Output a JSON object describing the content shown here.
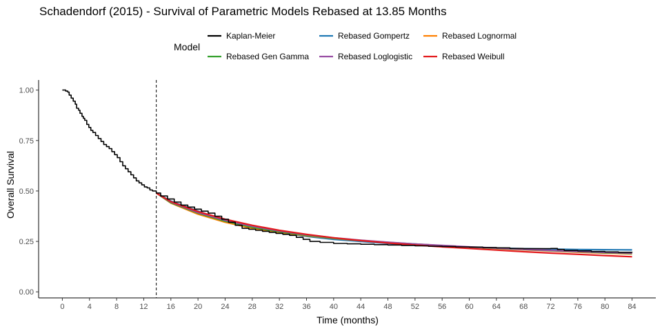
{
  "chart_data": {
    "type": "line",
    "title": "Schadendorf (2015) - Survival of Parametric Models Rebased at 13.85 Months",
    "xlabel": "Time (months)",
    "ylabel": "Overall Survival",
    "xlim": [
      -3.5,
      87.5
    ],
    "ylim": [
      -0.03,
      1.05
    ],
    "x_ticks": [
      0,
      4,
      8,
      12,
      16,
      20,
      24,
      28,
      32,
      36,
      40,
      44,
      48,
      52,
      56,
      60,
      64,
      68,
      72,
      76,
      80,
      84
    ],
    "x_tick_labels": [
      "0",
      "4",
      "8",
      "12",
      "16",
      "20",
      "24",
      "28",
      "32",
      "36",
      "40",
      "44",
      "48",
      "52",
      "56",
      "60",
      "64",
      "68",
      "72",
      "76",
      "80",
      "84"
    ],
    "y_ticks": [
      0,
      0.25,
      0.5,
      0.75,
      1
    ],
    "y_tick_labels": [
      "0.00",
      "0.25",
      "0.50",
      "0.75",
      "1.00"
    ],
    "rebase_time": 13.85,
    "grid": false,
    "legend": {
      "title": "Model",
      "position": "top",
      "columns": 3
    },
    "series": [
      {
        "name": "Kaplan-Meier",
        "color": "#000000",
        "step": true,
        "x": [
          0,
          0.5,
          0.8,
          1,
          1.3,
          1.6,
          1.9,
          2.1,
          2.4,
          2.6,
          2.9,
          3.1,
          3.3,
          3.6,
          3.9,
          4.2,
          4.5,
          4.9,
          5.3,
          5.7,
          6.1,
          6.5,
          6.9,
          7.3,
          7.7,
          8.1,
          8.5,
          8.9,
          9.3,
          9.7,
          10.1,
          10.5,
          10.9,
          11.3,
          11.7,
          12.1,
          12.5,
          12.9,
          13.3,
          13.85,
          14.5,
          15.5,
          16.5,
          17.5,
          18.5,
          19.5,
          20.5,
          21.5,
          22.5,
          23.5,
          24.5,
          25.5,
          26.5,
          27.5,
          28.5,
          29.5,
          30.5,
          31.5,
          32.5,
          33.5,
          34.5,
          35.5,
          36.5,
          38,
          40,
          42,
          44,
          46,
          48,
          50,
          52,
          54,
          56,
          58,
          60,
          62,
          64,
          66,
          68,
          70,
          72,
          73,
          74,
          76,
          78,
          80,
          82,
          84
        ],
        "y": [
          1,
          0.995,
          0.99,
          0.975,
          0.96,
          0.945,
          0.93,
          0.91,
          0.9,
          0.885,
          0.87,
          0.86,
          0.85,
          0.83,
          0.815,
          0.8,
          0.79,
          0.775,
          0.76,
          0.745,
          0.73,
          0.72,
          0.71,
          0.695,
          0.68,
          0.665,
          0.645,
          0.625,
          0.61,
          0.595,
          0.58,
          0.565,
          0.55,
          0.54,
          0.53,
          0.52,
          0.515,
          0.505,
          0.5,
          0.49,
          0.475,
          0.46,
          0.445,
          0.43,
          0.42,
          0.41,
          0.4,
          0.39,
          0.375,
          0.36,
          0.345,
          0.33,
          0.315,
          0.31,
          0.305,
          0.3,
          0.295,
          0.29,
          0.285,
          0.28,
          0.27,
          0.26,
          0.25,
          0.245,
          0.24,
          0.238,
          0.236,
          0.234,
          0.232,
          0.23,
          0.228,
          0.226,
          0.225,
          0.223,
          0.222,
          0.22,
          0.218,
          0.215,
          0.214,
          0.214,
          0.215,
          0.21,
          0.205,
          0.203,
          0.2,
          0.198,
          0.196,
          0.195
        ]
      },
      {
        "name": "Rebased Gompertz",
        "color": "#1f78b4",
        "x": [
          13.85,
          16,
          20,
          24,
          28,
          32,
          36,
          40,
          44,
          48,
          52,
          56,
          60,
          64,
          68,
          72,
          76,
          80,
          84
        ],
        "y": [
          0.49,
          0.45,
          0.4,
          0.355,
          0.32,
          0.295,
          0.275,
          0.26,
          0.25,
          0.24,
          0.232,
          0.226,
          0.221,
          0.217,
          0.214,
          0.212,
          0.21,
          0.209,
          0.208
        ]
      },
      {
        "name": "Rebased Lognormal",
        "color": "#ff7f00",
        "x": [
          13.85,
          16,
          20,
          24,
          28,
          32,
          36,
          40,
          44,
          48,
          52,
          56,
          60,
          64,
          68,
          72,
          76,
          80,
          84
        ],
        "y": [
          0.49,
          0.44,
          0.385,
          0.345,
          0.315,
          0.295,
          0.278,
          0.265,
          0.254,
          0.244,
          0.236,
          0.229,
          0.222,
          0.215,
          0.209,
          0.203,
          0.197,
          0.192,
          0.188
        ]
      },
      {
        "name": "Rebased Gen Gamma",
        "color": "#33a02c",
        "x": [
          13.85,
          16,
          20,
          24,
          28,
          32,
          36,
          40,
          44,
          48,
          52,
          56,
          60,
          64,
          68,
          72,
          76,
          80,
          84
        ],
        "y": [
          0.49,
          0.442,
          0.39,
          0.35,
          0.32,
          0.298,
          0.28,
          0.266,
          0.255,
          0.245,
          0.237,
          0.229,
          0.222,
          0.216,
          0.21,
          0.204,
          0.199,
          0.194,
          0.19
        ]
      },
      {
        "name": "Rebased Loglogistic",
        "color": "#984ea3",
        "x": [
          13.85,
          16,
          20,
          24,
          28,
          32,
          36,
          40,
          44,
          48,
          52,
          56,
          60,
          64,
          68,
          72,
          76,
          80,
          84
        ],
        "y": [
          0.49,
          0.445,
          0.393,
          0.355,
          0.325,
          0.302,
          0.283,
          0.268,
          0.256,
          0.246,
          0.237,
          0.23,
          0.223,
          0.217,
          0.211,
          0.205,
          0.2,
          0.196,
          0.192
        ]
      },
      {
        "name": "Rebased Weibull",
        "color": "#e31a1c",
        "x": [
          13.85,
          16,
          20,
          24,
          28,
          32,
          36,
          40,
          44,
          48,
          52,
          56,
          60,
          64,
          68,
          72,
          76,
          80,
          84
        ],
        "y": [
          0.49,
          0.447,
          0.398,
          0.36,
          0.33,
          0.305,
          0.285,
          0.268,
          0.254,
          0.242,
          0.232,
          0.223,
          0.215,
          0.207,
          0.199,
          0.192,
          0.186,
          0.18,
          0.174
        ]
      }
    ]
  }
}
